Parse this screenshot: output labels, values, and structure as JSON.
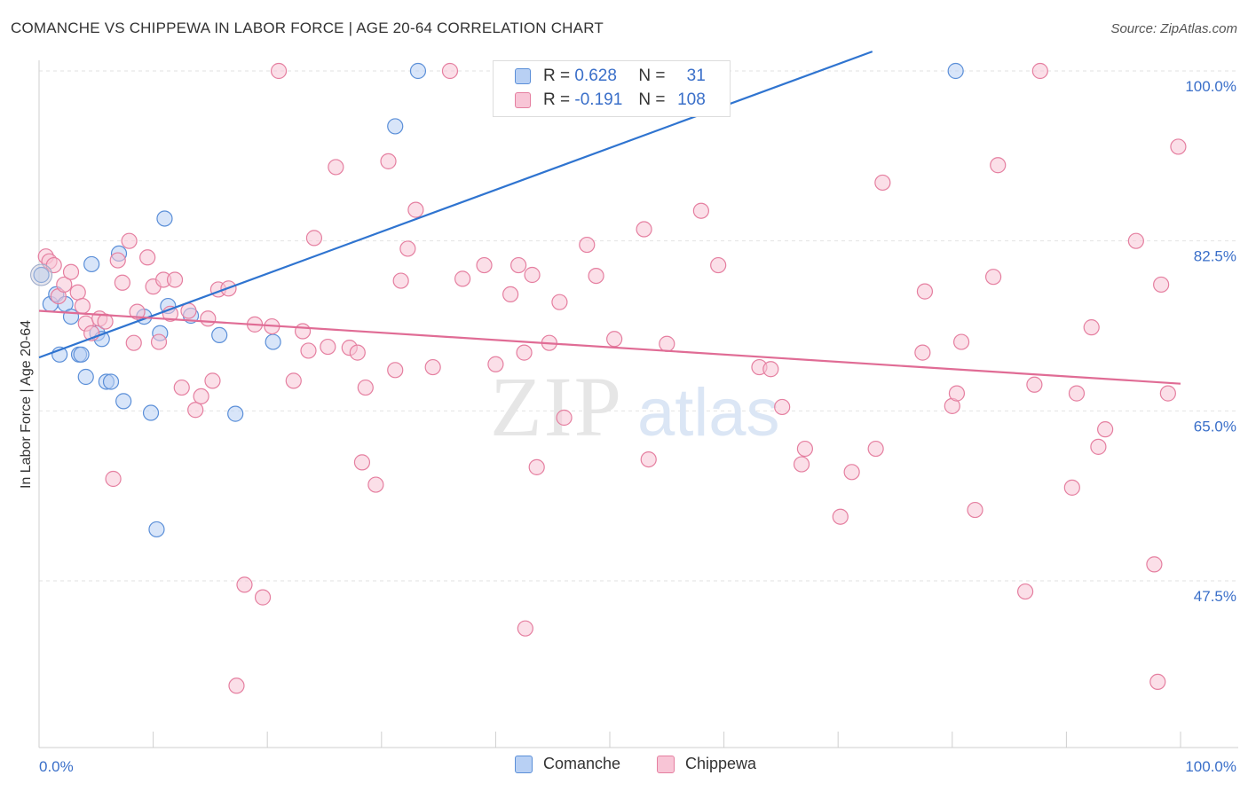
{
  "title": "COMANCHE VS CHIPPEWA IN LABOR FORCE | AGE 20-64 CORRELATION CHART",
  "source": "Source: ZipAtlas.com",
  "watermark": {
    "zip": "ZIP",
    "atlas": "atlas"
  },
  "legend": {
    "rows": [
      {
        "r_label": "R =",
        "r_value": "0.628",
        "n_label": "N =",
        "n_value": "31",
        "color": "#5b8fd8",
        "fill": "#b8d0f4"
      },
      {
        "r_label": "R =",
        "r_value": "-0.191",
        "n_label": "N =",
        "n_value": "108",
        "color": "#e57fa0",
        "fill": "#f8c5d6"
      }
    ]
  },
  "bottom_legend": [
    "Comanche",
    "Chippewa"
  ],
  "chart_data": {
    "type": "scatter",
    "title": "COMANCHE VS CHIPPEWA IN LABOR FORCE | AGE 20-64 CORRELATION CHART",
    "xlabel": "",
    "ylabel": "In Labor Force | Age 20-64",
    "xlim": [
      0,
      100
    ],
    "ylim": [
      30,
      102
    ],
    "x_tick_labels": [
      "0.0%",
      "100.0%"
    ],
    "y_ticks": [
      47.5,
      65.0,
      82.5,
      100.0
    ],
    "y_tick_labels": [
      "47.5%",
      "65.0%",
      "82.5%",
      "100.0%"
    ],
    "grid": true,
    "legend_position": "top-center",
    "series": [
      {
        "name": "Comanche",
        "color": "#5b8fd8",
        "fill": "#b8d0f4",
        "trend": {
          "x": [
            0,
            73
          ],
          "y": [
            70.5,
            102
          ]
        },
        "points": [
          [
            0.2,
            79.0
          ],
          [
            1.0,
            76.0
          ],
          [
            1.5,
            77.0
          ],
          [
            1.8,
            70.8
          ],
          [
            2.3,
            76.0
          ],
          [
            2.8,
            74.7
          ],
          [
            3.5,
            70.8
          ],
          [
            3.7,
            70.8
          ],
          [
            4.1,
            68.5
          ],
          [
            4.6,
            80.1
          ],
          [
            5.1,
            73.0
          ],
          [
            5.5,
            72.4
          ],
          [
            5.9,
            68.0
          ],
          [
            6.3,
            68.0
          ],
          [
            7.0,
            81.2
          ],
          [
            7.4,
            66.0
          ],
          [
            9.2,
            74.7
          ],
          [
            9.8,
            64.8
          ],
          [
            10.3,
            52.8
          ],
          [
            10.6,
            73.0
          ],
          [
            11.0,
            84.8
          ],
          [
            11.3,
            75.8
          ],
          [
            13.3,
            74.8
          ],
          [
            15.8,
            72.8
          ],
          [
            17.2,
            64.7
          ],
          [
            20.5,
            72.1
          ],
          [
            33.2,
            100.0
          ],
          [
            31.2,
            94.3
          ],
          [
            80.3,
            100.0
          ]
        ]
      },
      {
        "name": "Chippewa",
        "color": "#e57fa0",
        "fill": "#f8c5d6",
        "trend": {
          "x": [
            0,
            100
          ],
          "y": [
            75.3,
            67.8
          ]
        },
        "points": [
          [
            0.6,
            80.9
          ],
          [
            0.9,
            80.4
          ],
          [
            1.3,
            80.0
          ],
          [
            1.7,
            76.8
          ],
          [
            2.2,
            78.0
          ],
          [
            2.8,
            79.3
          ],
          [
            3.4,
            77.2
          ],
          [
            3.8,
            75.8
          ],
          [
            4.1,
            74.0
          ],
          [
            4.6,
            73.0
          ],
          [
            5.3,
            74.5
          ],
          [
            5.8,
            74.2
          ],
          [
            6.5,
            58.0
          ],
          [
            6.9,
            80.5
          ],
          [
            7.3,
            78.2
          ],
          [
            7.9,
            82.5
          ],
          [
            8.3,
            72.0
          ],
          [
            8.6,
            75.2
          ],
          [
            9.5,
            80.8
          ],
          [
            10.0,
            77.8
          ],
          [
            10.5,
            72.1
          ],
          [
            10.9,
            78.5
          ],
          [
            11.5,
            75.0
          ],
          [
            11.9,
            78.5
          ],
          [
            12.5,
            67.4
          ],
          [
            13.1,
            75.3
          ],
          [
            13.7,
            65.1
          ],
          [
            14.2,
            66.5
          ],
          [
            14.8,
            74.5
          ],
          [
            15.2,
            68.1
          ],
          [
            15.7,
            77.5
          ],
          [
            16.6,
            77.6
          ],
          [
            17.3,
            36.7
          ],
          [
            18.0,
            47.1
          ],
          [
            18.9,
            73.9
          ],
          [
            19.6,
            45.8
          ],
          [
            20.4,
            73.7
          ],
          [
            21.0,
            100.0
          ],
          [
            22.3,
            68.1
          ],
          [
            23.1,
            73.2
          ],
          [
            23.6,
            71.2
          ],
          [
            24.1,
            82.8
          ],
          [
            25.3,
            71.6
          ],
          [
            26.0,
            90.1
          ],
          [
            27.2,
            71.5
          ],
          [
            27.9,
            71.0
          ],
          [
            28.6,
            67.4
          ],
          [
            28.3,
            59.7
          ],
          [
            29.5,
            57.4
          ],
          [
            30.6,
            90.7
          ],
          [
            31.2,
            69.2
          ],
          [
            31.7,
            78.4
          ],
          [
            32.3,
            81.7
          ],
          [
            33.0,
            85.7
          ],
          [
            34.5,
            69.5
          ],
          [
            36.0,
            100.0
          ],
          [
            37.1,
            78.6
          ],
          [
            39.0,
            80.0
          ],
          [
            40.0,
            69.8
          ],
          [
            41.3,
            77.0
          ],
          [
            42.0,
            80.0
          ],
          [
            42.5,
            71.0
          ],
          [
            43.2,
            79.0
          ],
          [
            43.6,
            59.2
          ],
          [
            42.6,
            42.6
          ],
          [
            44.7,
            72.0
          ],
          [
            45.6,
            76.2
          ],
          [
            46.0,
            64.3
          ],
          [
            48.0,
            82.1
          ],
          [
            48.8,
            78.9
          ],
          [
            50.4,
            72.4
          ],
          [
            53.0,
            83.7
          ],
          [
            53.4,
            60.0
          ],
          [
            55.0,
            71.9
          ],
          [
            58.0,
            85.6
          ],
          [
            59.5,
            80.0
          ],
          [
            63.1,
            69.5
          ],
          [
            64.1,
            69.3
          ],
          [
            65.1,
            65.4
          ],
          [
            66.8,
            59.5
          ],
          [
            67.1,
            61.1
          ],
          [
            70.2,
            54.1
          ],
          [
            71.2,
            58.7
          ],
          [
            73.3,
            61.1
          ],
          [
            73.9,
            88.5
          ],
          [
            77.4,
            71.0
          ],
          [
            77.6,
            77.3
          ],
          [
            80.0,
            65.5
          ],
          [
            80.4,
            66.8
          ],
          [
            80.8,
            72.1
          ],
          [
            82.0,
            54.8
          ],
          [
            83.6,
            78.8
          ],
          [
            84.0,
            90.3
          ],
          [
            86.4,
            46.4
          ],
          [
            87.2,
            67.7
          ],
          [
            87.7,
            100.0
          ],
          [
            90.5,
            57.1
          ],
          [
            90.9,
            66.8
          ],
          [
            92.2,
            73.6
          ],
          [
            92.8,
            61.3
          ],
          [
            93.4,
            63.1
          ],
          [
            96.1,
            82.5
          ],
          [
            97.7,
            49.2
          ],
          [
            98.3,
            78.0
          ],
          [
            98.0,
            37.1
          ],
          [
            98.9,
            66.8
          ],
          [
            99.8,
            92.2
          ]
        ]
      }
    ]
  }
}
